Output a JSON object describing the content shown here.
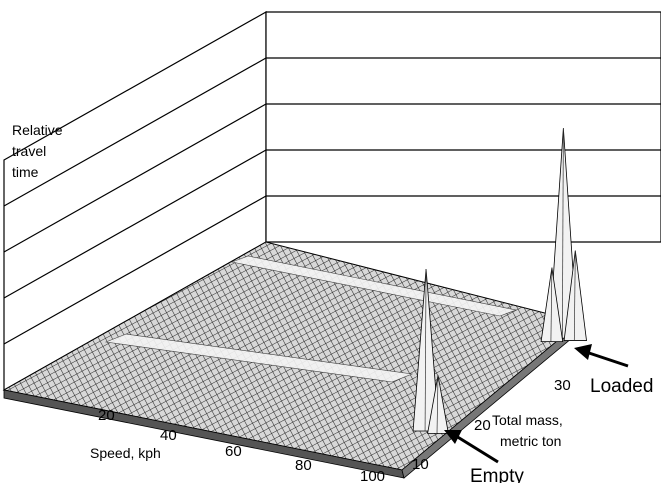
{
  "chart_data": {
    "type": "surface3d",
    "title": "",
    "zlabel_lines": [
      "Relative",
      "travel",
      "time"
    ],
    "xlabel": "Speed, kph",
    "ylabel_lines": [
      "Total mass,",
      "metric ton"
    ],
    "x_ticks": [
      "20",
      "40",
      "60",
      "80",
      "100"
    ],
    "y_ticks": [
      "10",
      "20",
      "30"
    ],
    "x_range": [
      0,
      100
    ],
    "y_range": [
      5,
      40
    ],
    "annotations": {
      "empty": "Empty",
      "loaded": "Loaded"
    },
    "peaks": [
      {
        "name": "empty-main-peak",
        "speed": 91,
        "mass": 13,
        "height": 1.0
      },
      {
        "name": "empty-side-peak",
        "speed": 94,
        "mass": 13,
        "height": 0.35
      },
      {
        "name": "loaded-main-peak",
        "speed": 86,
        "mass": 34,
        "height": 1.3
      },
      {
        "name": "loaded-side-peak-1",
        "speed": 85,
        "mass": 33,
        "height": 0.45
      },
      {
        "name": "loaded-side-peak-2",
        "speed": 89,
        "mass": 34,
        "height": 0.55
      }
    ],
    "ridges": [
      {
        "name": "empty-ridge",
        "mass": 13
      },
      {
        "name": "loaded-ridge",
        "mass": 34
      }
    ]
  }
}
